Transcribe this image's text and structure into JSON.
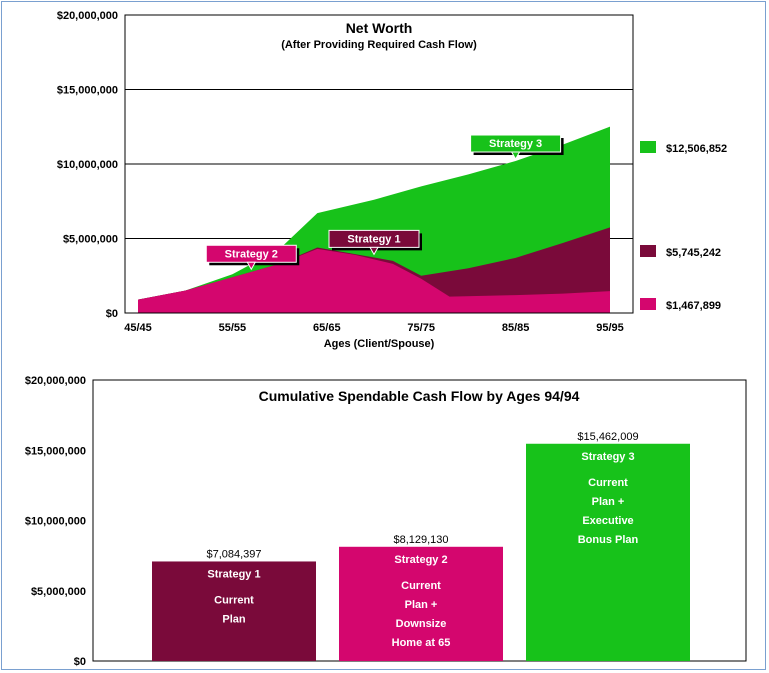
{
  "colors": {
    "strategy1": "#7a0a3a",
    "strategy2": "#d4066e",
    "strategy3": "#17c21a"
  },
  "chart_data": [
    {
      "type": "area",
      "title": "Net Worth",
      "subtitle": "(After Providing Required Cash Flow)",
      "xlabel": "Ages (Client/Spouse)",
      "ylabel": "",
      "x_ticks": [
        "45/45",
        "55/55",
        "65/65",
        "75/75",
        "85/85",
        "95/95"
      ],
      "x_range": [
        45,
        95
      ],
      "y_ticks": [
        "$0",
        "$5,000,000",
        "$10,000,000",
        "$15,000,000",
        "$20,000,000"
      ],
      "ylim": [
        0,
        20000000
      ],
      "gridlines": "horizontal",
      "series": [
        {
          "key": "strategy3",
          "name": "Strategy 3",
          "color": "#17c21a",
          "end_label": "$12,506,852",
          "points": [
            [
              45,
              900000
            ],
            [
              50,
              1500000
            ],
            [
              55,
              2600000
            ],
            [
              60,
              4300000
            ],
            [
              64,
              6700000
            ],
            [
              70,
              7600000
            ],
            [
              75,
              8500000
            ],
            [
              80,
              9300000
            ],
            [
              85,
              10200000
            ],
            [
              90,
              11300000
            ],
            [
              95,
              12506852
            ]
          ]
        },
        {
          "key": "strategy1",
          "name": "Strategy 1",
          "color": "#7a0a3a",
          "end_label": "$5,745,242",
          "points": [
            [
              45,
              900000
            ],
            [
              50,
              1500000
            ],
            [
              55,
              2400000
            ],
            [
              60,
              3300000
            ],
            [
              64,
              4400000
            ],
            [
              68,
              3950000
            ],
            [
              72,
              3500000
            ],
            [
              75,
              2500000
            ],
            [
              80,
              3000000
            ],
            [
              85,
              3700000
            ],
            [
              90,
              4700000
            ],
            [
              95,
              5745242
            ]
          ]
        },
        {
          "key": "strategy2",
          "name": "Strategy 2",
          "color": "#d4066e",
          "end_label": "$1,467,899",
          "points": [
            [
              45,
              900000
            ],
            [
              50,
              1500000
            ],
            [
              55,
              2400000
            ],
            [
              60,
              3300000
            ],
            [
              64,
              4300000
            ],
            [
              68,
              3900000
            ],
            [
              72,
              3300000
            ],
            [
              75,
              2300000
            ],
            [
              78,
              1100000
            ],
            [
              85,
              1200000
            ],
            [
              90,
              1300000
            ],
            [
              95,
              1467899
            ]
          ]
        }
      ],
      "callouts": [
        {
          "label": "Strategy 3",
          "color": "#17c21a",
          "at_x": 85,
          "at_y": 10200000
        },
        {
          "label": "Strategy 1",
          "color": "#7a0a3a",
          "at_x": 70,
          "at_y": 3800000
        },
        {
          "label": "Strategy 2",
          "color": "#d4066e",
          "at_x": 57,
          "at_y": 2800000
        }
      ]
    },
    {
      "type": "bar",
      "title": "Cumulative Spendable Cash Flow by Ages 94/94",
      "xlabel": "",
      "ylabel": "",
      "y_ticks": [
        "$0",
        "$5,000,000",
        "$10,000,000",
        "$15,000,000",
        "$20,000,000"
      ],
      "ylim": [
        0,
        20000000
      ],
      "categories": [
        "Strategy 1",
        "Strategy 2",
        "Strategy 3"
      ],
      "values": [
        7084397,
        8129130,
        15462009
      ],
      "value_labels": [
        "$7,084,397",
        "$8,129,130",
        "$15,462,009"
      ],
      "colors": [
        "#7a0a3a",
        "#d4066e",
        "#17c21a"
      ],
      "descriptions": [
        [
          "Current",
          "Plan"
        ],
        [
          "Current",
          "Plan +",
          "Downsize",
          "Home at 65"
        ],
        [
          "Current",
          "Plan +",
          "Executive",
          "Bonus Plan"
        ]
      ]
    }
  ]
}
